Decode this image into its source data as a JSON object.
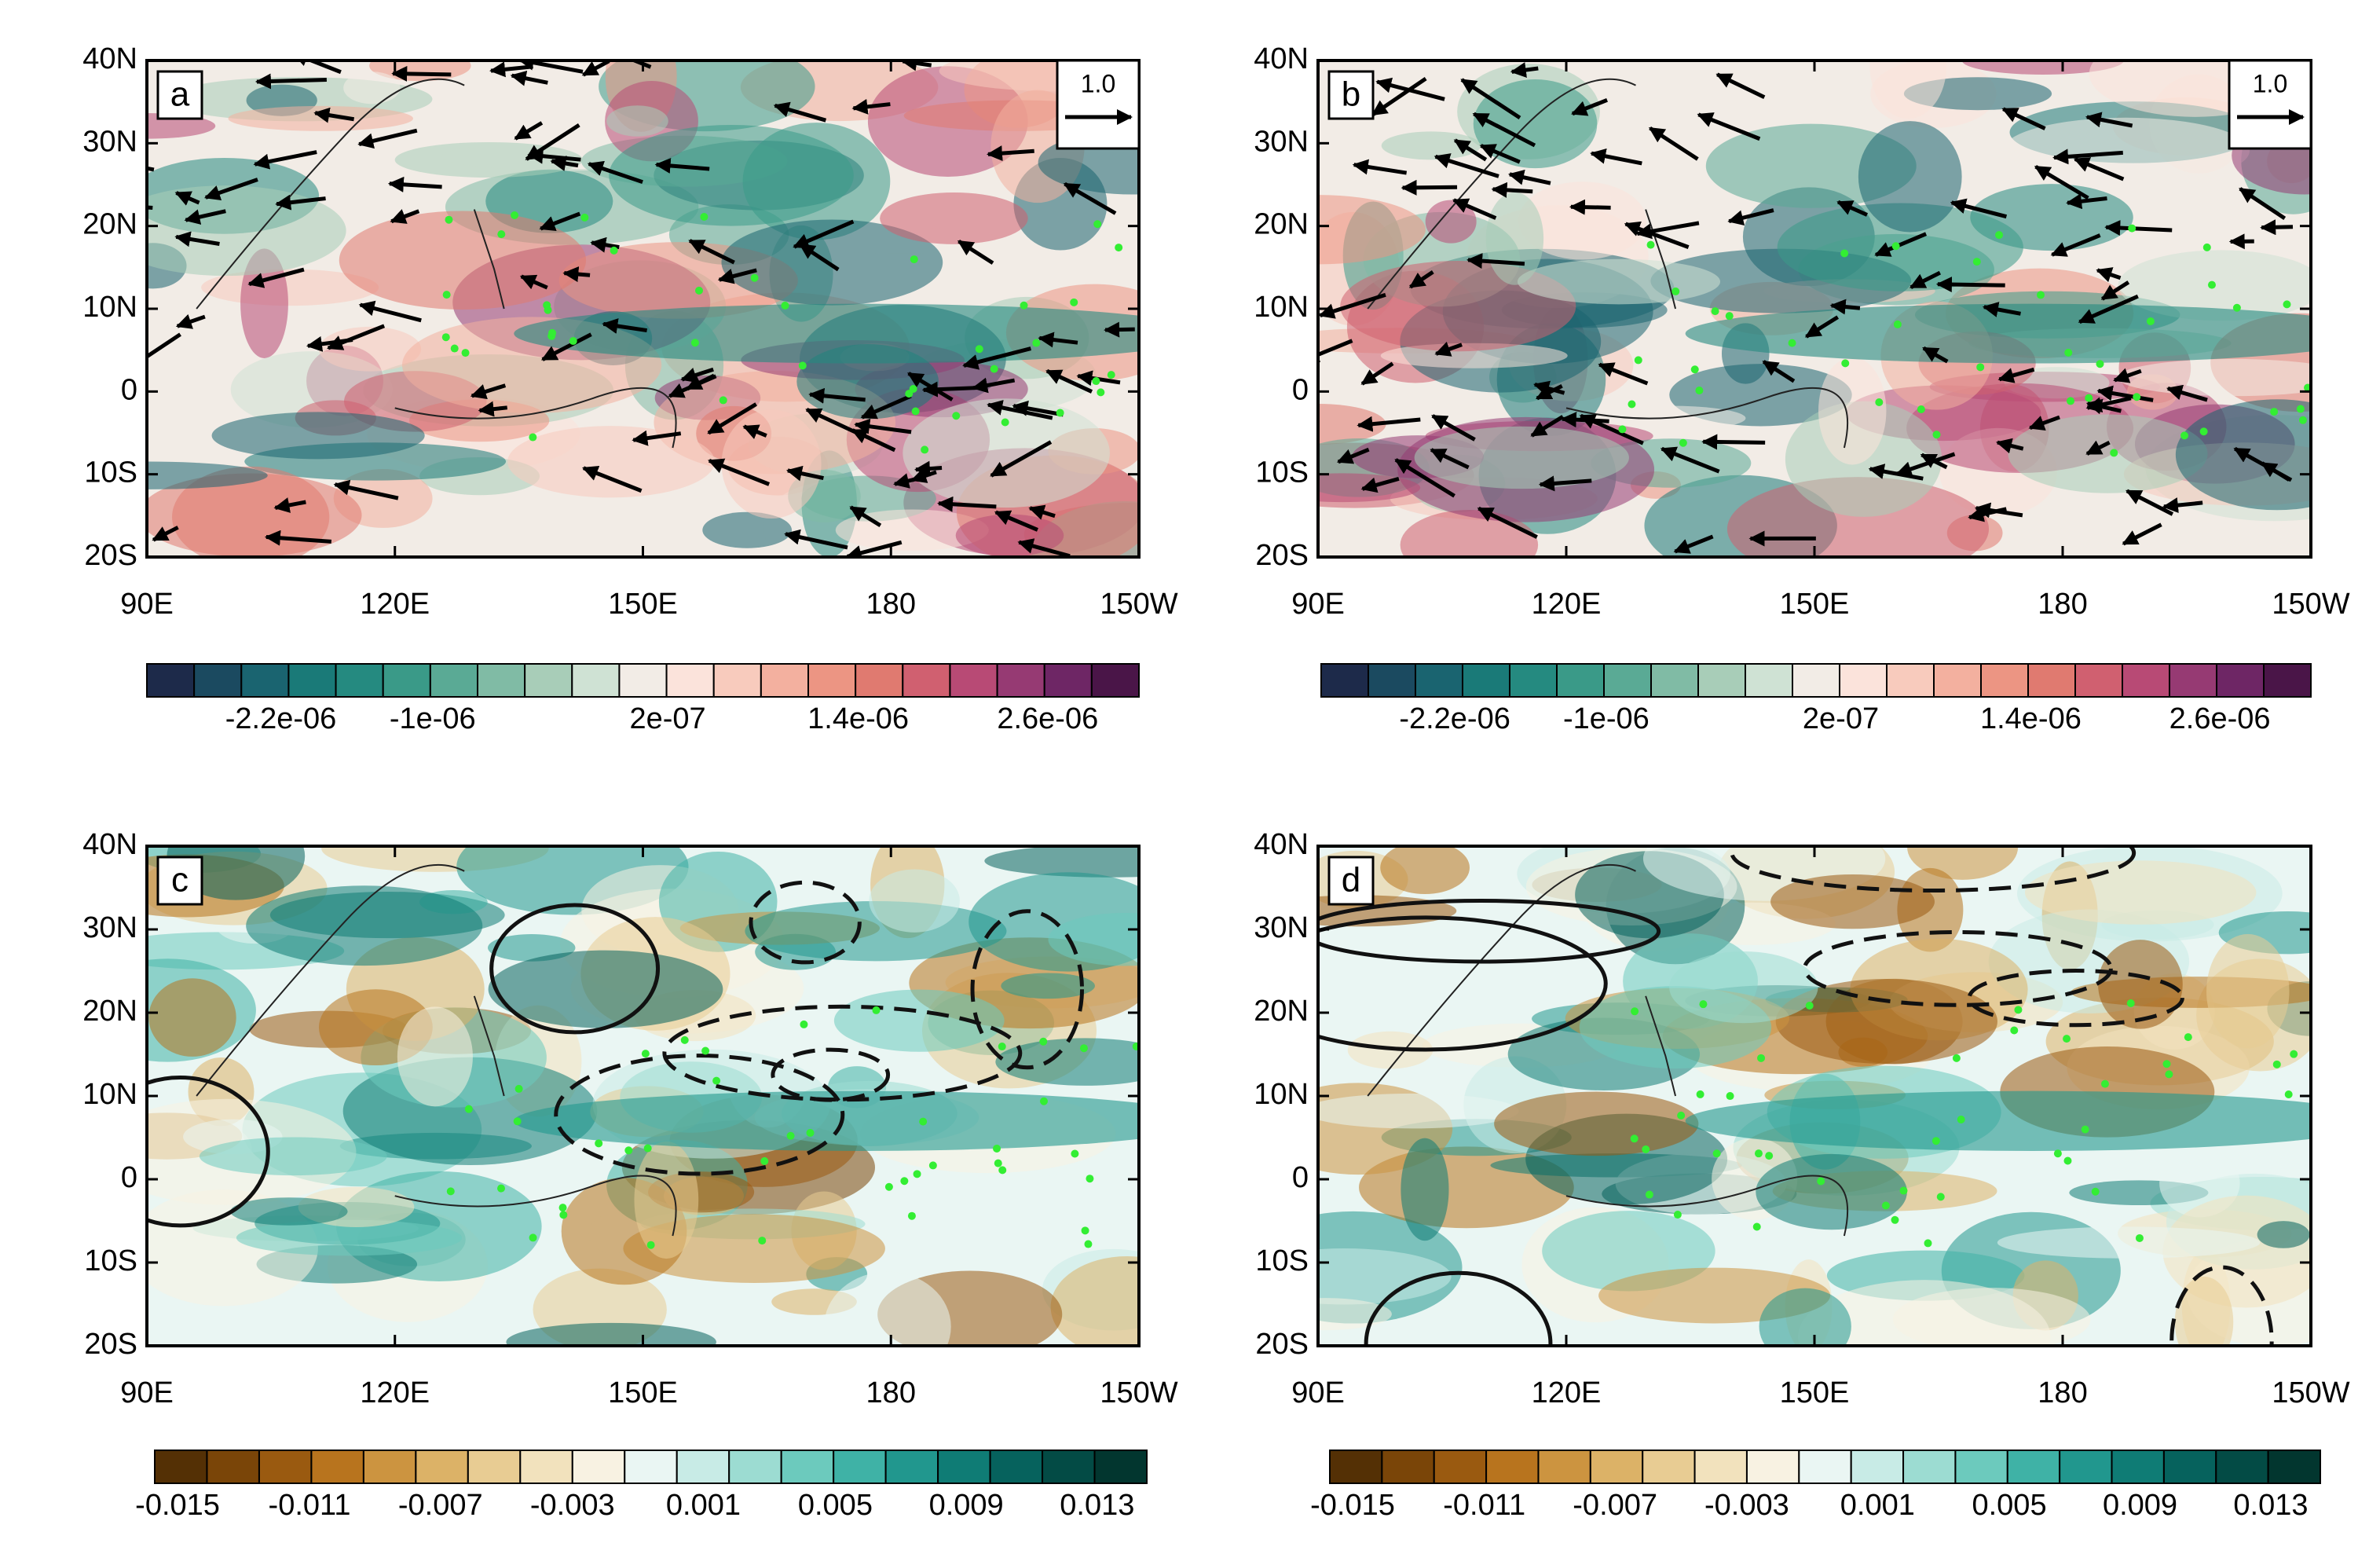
{
  "axes": {
    "x_labels": [
      "90E",
      "120E",
      "150E",
      "180",
      "150W"
    ],
    "y_labels": [
      "40N",
      "30N",
      "20N",
      "10N",
      "0",
      "10S",
      "20S"
    ]
  },
  "panels": [
    {
      "label": "a",
      "reference_vector": "1.0",
      "colorbar": {
        "labels": [
          "-2.2e-06",
          "-1e-06",
          "2e-07",
          "1.4e-06",
          "2.6e-06"
        ],
        "colors": [
          "#1d2a4a",
          "#1b4a60",
          "#1a6470",
          "#1a7a78",
          "#258a80",
          "#3a9a88",
          "#5aaa95",
          "#80bba5",
          "#a8cdb8",
          "#cfe2d4",
          "#f2ece6",
          "#fbe3db",
          "#f8cbbd",
          "#f3b09f",
          "#ec9583",
          "#e07a70",
          "#d06070",
          "#b84a75",
          "#963a73",
          "#6e2665",
          "#4a1548"
        ]
      }
    },
    {
      "label": "b",
      "reference_vector": "1.0",
      "colorbar": {
        "labels": [
          "-2.2e-06",
          "-1e-06",
          "2e-07",
          "1.4e-06",
          "2.6e-06"
        ],
        "colors": [
          "#1d2a4a",
          "#1b4a60",
          "#1a6470",
          "#1a7a78",
          "#258a80",
          "#3a9a88",
          "#5aaa95",
          "#80bba5",
          "#a8cdb8",
          "#cfe2d4",
          "#f2ece6",
          "#fbe3db",
          "#f8cbbd",
          "#f3b09f",
          "#ec9583",
          "#e07a70",
          "#d06070",
          "#b84a75",
          "#963a73",
          "#6e2665",
          "#4a1548"
        ]
      }
    },
    {
      "label": "c",
      "colorbar": {
        "labels": [
          "-0.015",
          "-0.011",
          "-0.007",
          "-0.003",
          "0.001",
          "0.005",
          "0.009",
          "0.013"
        ],
        "colors": [
          "#543005",
          "#7a4508",
          "#9a5a10",
          "#b8741e",
          "#cc9440",
          "#dcb267",
          "#e8cc93",
          "#f2e2bd",
          "#f8f2e2",
          "#eaf6f3",
          "#c8ebe6",
          "#9cdcd2",
          "#6ccabd",
          "#3fb2a6",
          "#21978e",
          "#0f7c75",
          "#06625d",
          "#034b45",
          "#02362f"
        ]
      }
    },
    {
      "label": "d",
      "colorbar": {
        "labels": [
          "-0.015",
          "-0.011",
          "-0.007",
          "-0.003",
          "0.001",
          "0.005",
          "0.009",
          "0.013"
        ],
        "colors": [
          "#543005",
          "#7a4508",
          "#9a5a10",
          "#b8741e",
          "#cc9440",
          "#dcb267",
          "#e8cc93",
          "#f2e2bd",
          "#f8f2e2",
          "#eaf6f3",
          "#c8ebe6",
          "#9cdcd2",
          "#6ccabd",
          "#3fb2a6",
          "#21978e",
          "#0f7c75",
          "#06625d",
          "#034b45",
          "#02362f"
        ]
      }
    }
  ]
}
